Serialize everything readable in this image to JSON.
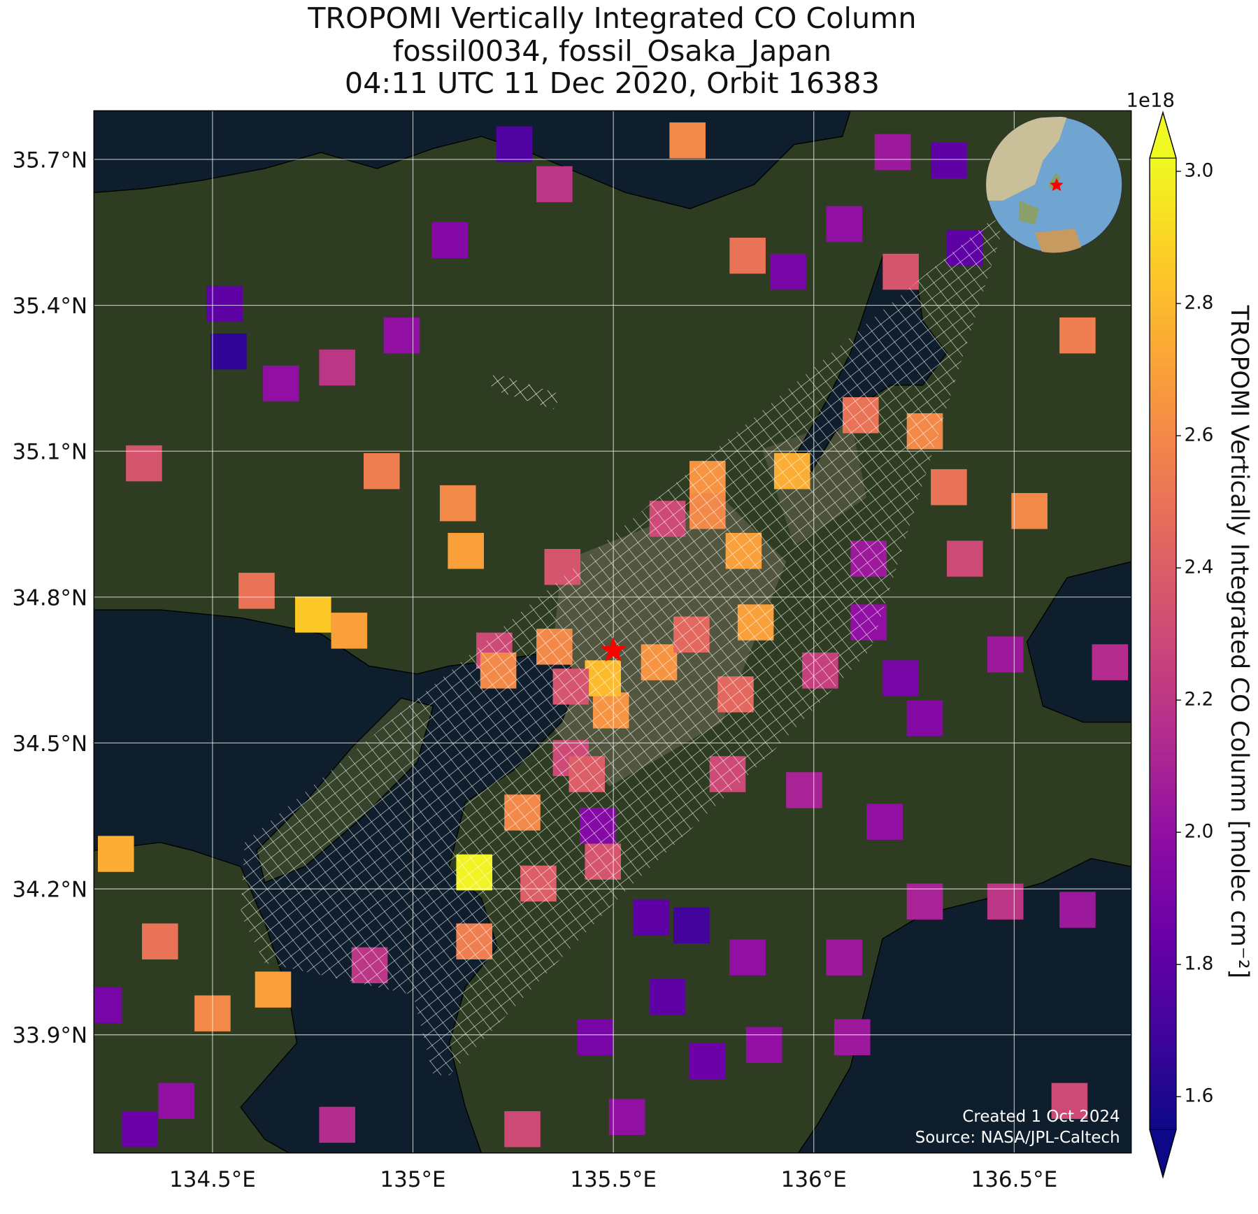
{
  "chart_data": {
    "type": "map",
    "title": [
      "TROPOMI Vertically Integrated CO Column",
      "fossil0034, fossil_Osaka_Japan",
      "04:11 UTC 11 Dec 2020, Orbit 16383"
    ],
    "xlim": [
      134.204,
      136.792
    ],
    "ylim": [
      33.657,
      35.8
    ],
    "xticks": [
      {
        "value": 134.5,
        "label": "134.5°E"
      },
      {
        "value": 135,
        "label": "135°E"
      },
      {
        "value": 135.5,
        "label": "135.5°E"
      },
      {
        "value": 136,
        "label": "136°E"
      },
      {
        "value": 136.5,
        "label": "136.5°E"
      }
    ],
    "yticks": [
      {
        "value": 33.9,
        "label": "33.9°N"
      },
      {
        "value": 34.2,
        "label": "34.2°N"
      },
      {
        "value": 34.5,
        "label": "34.5°N"
      },
      {
        "value": 34.8,
        "label": "34.8°N"
      },
      {
        "value": 35.1,
        "label": "35.1°N"
      },
      {
        "value": 35.4,
        "label": "35.4°N"
      },
      {
        "value": 35.7,
        "label": "35.7°N"
      }
    ],
    "grid": true,
    "colormap": "plasma",
    "colorbar": {
      "label": "TROPOMI Vertically Integrated CO Column [molec cm⁻²]",
      "offset_label": "1e18",
      "lim": [
        1.55,
        3.02
      ],
      "ticks": [
        1.6,
        1.8,
        {
          "value": 2,
          "label": "2.0"
        },
        2.2,
        2.4,
        2.6,
        2.8,
        {
          "value": 3,
          "label": "3.0"
        }
      ]
    },
    "site": {
      "lon": 135.5,
      "lat": 34.69
    },
    "cells": {
      "lon": [
        135.153,
        135.273,
        135.313,
        135.461,
        135.474,
        135.494,
        135.474,
        135.353,
        135.203,
        135.213,
        135.735,
        135.825,
        135.855,
        135.614,
        135.695,
        135.805,
        135.946,
        136.117,
        136.277,
        136.337,
        136.538,
        136.658,
        134.751,
        134.841,
        134.61,
        134.259,
        134.651,
        134.5,
        134.369,
        134.229,
        134.53,
        134.54,
        134.671,
        134.811,
        134.972,
        135.092,
        135.253,
        135.353,
        135.685,
        135.835,
        135.936,
        136.337,
        136.197,
        136.377,
        136.217,
        136.076,
        135.594,
        135.695,
        135.635,
        135.835,
        136.076,
        136.277,
        136.478,
        136.658,
        136.177,
        135.976,
        136.277,
        136.217,
        136.478,
        136.739,
        136.137,
        136.377,
        136.137,
        135.273,
        135.454,
        135.735,
        135.534,
        135.153,
        134.892,
        134.41,
        134.319,
        134.811,
        136.638,
        136.096,
        135.876,
        134.329,
        134.922,
        135.112,
        135.132,
        135.735,
        135.635,
        135.373,
        135.394,
        135.394,
        135.434,
        135.785,
        136.016
      ],
      "lat": [
        34.234,
        34.357,
        34.211,
        34.33,
        34.256,
        34.567,
        34.633,
        34.698,
        34.69,
        34.649,
        35.043,
        34.895,
        34.748,
        34.666,
        34.723,
        34.6,
        35.059,
        35.174,
        35.141,
        35.026,
        34.977,
        35.338,
        34.764,
        34.731,
        34.813,
        34.272,
        33.993,
        33.944,
        34.092,
        33.961,
        35.403,
        35.305,
        35.239,
        35.272,
        35.338,
        35.534,
        35.731,
        35.649,
        35.739,
        35.502,
        35.469,
        35.698,
        35.715,
        35.518,
        35.469,
        35.567,
        34.141,
        34.125,
        33.978,
        34.059,
        34.059,
        34.174,
        34.174,
        34.157,
        34.338,
        34.403,
        34.551,
        34.633,
        34.682,
        34.666,
        34.879,
        34.879,
        34.748,
        33.706,
        33.895,
        33.846,
        33.731,
        34.092,
        34.043,
        33.764,
        33.706,
        33.715,
        33.764,
        33.895,
        33.879,
        35.075,
        35.059,
        34.993,
        34.895,
        34.977,
        34.961,
        34.862,
        34.616,
        34.469,
        34.436,
        34.436,
        34.649
      ],
      "values": [
        3.0,
        2.6,
        2.4,
        1.95,
        2.35,
        2.65,
        2.8,
        2.6,
        2.3,
        2.6,
        2.65,
        2.7,
        2.7,
        2.65,
        2.45,
        2.45,
        2.75,
        2.5,
        2.6,
        2.5,
        2.6,
        2.55,
        2.85,
        2.7,
        2.5,
        2.75,
        2.7,
        2.6,
        2.5,
        1.9,
        1.8,
        1.65,
        2.0,
        2.2,
        2.0,
        1.95,
        1.75,
        2.2,
        2.6,
        2.5,
        1.9,
        1.8,
        2.05,
        1.8,
        2.35,
        2.0,
        1.8,
        1.7,
        1.8,
        2.0,
        2.05,
        2.1,
        2.2,
        2.05,
        2.0,
        2.1,
        1.95,
        1.9,
        2.05,
        2.15,
        2.05,
        2.3,
        2.0,
        2.3,
        1.9,
        1.85,
        2.0,
        2.55,
        2.2,
        2.0,
        1.85,
        2.15,
        2.3,
        2.05,
        2.0,
        2.35,
        2.55,
        2.6,
        2.7,
        2.6,
        2.3,
        2.35,
        2.35,
        2.3,
        2.4,
        2.3,
        2.25
      ]
    },
    "footer": [
      "Created 1 Oct 2024",
      "Source: NASA/JPL-Caltech"
    ]
  }
}
